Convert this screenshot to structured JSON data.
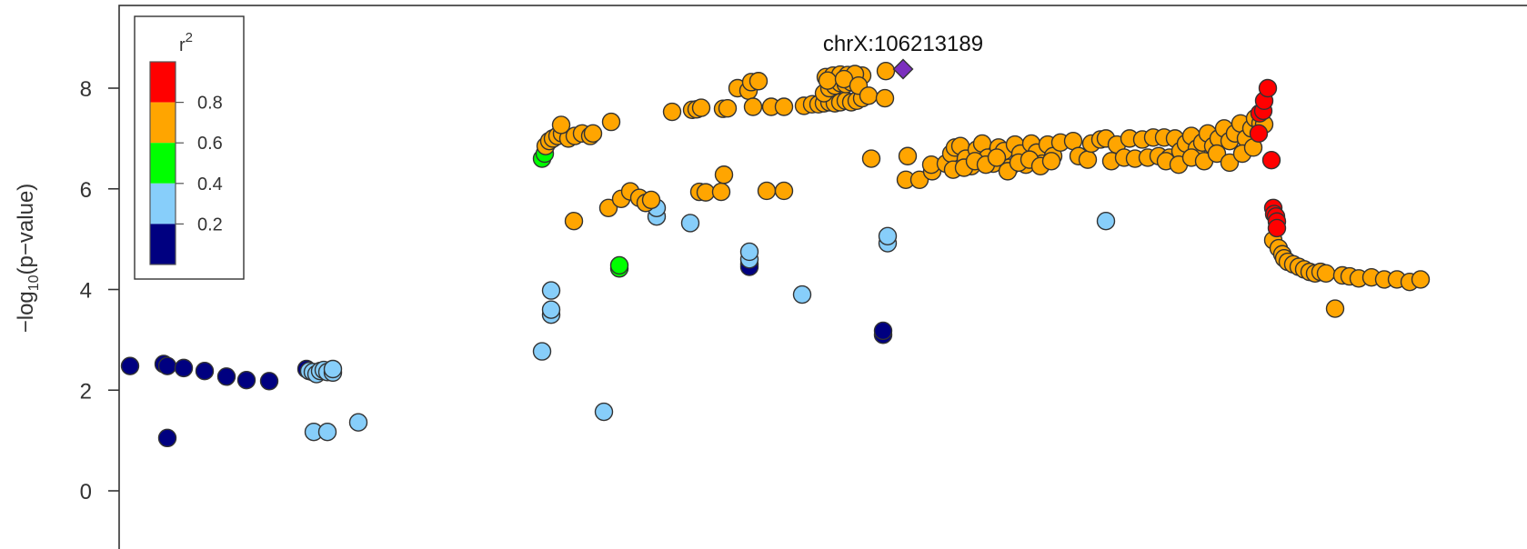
{
  "chart_data": {
    "type": "scatter",
    "title": "",
    "xlabel": "",
    "ylabel": {
      "prefix": "−log",
      "subscript": "10",
      "suffix": "(p−value)"
    },
    "xlim": [
      0,
      1568
    ],
    "ylim": [
      -0.4,
      9.6
    ],
    "yticks": [
      0,
      2,
      4,
      6,
      8
    ],
    "x_axis_note": "x axis has no tick labels visible; x values are relative positions along the region",
    "grid": false,
    "legend": {
      "title": "r",
      "title_superscript": "2",
      "placement": "top-left",
      "bins": [
        {
          "label": "",
          "color": "#FF0000",
          "range": [
            0.8,
            1.0
          ]
        },
        {
          "label": "0.8",
          "color": "#FFA500",
          "range": [
            0.6,
            0.8
          ]
        },
        {
          "label": "0.6",
          "color": "#00FF00",
          "range": [
            0.4,
            0.6
          ]
        },
        {
          "label": "0.4",
          "color": "#87CEFA",
          "range": [
            0.2,
            0.4
          ]
        },
        {
          "label": "0.2",
          "color": "#000080",
          "range": [
            0.0,
            0.2
          ]
        }
      ],
      "tick_labels": [
        "0.8",
        "0.6",
        "0.4",
        "0.2"
      ]
    },
    "lead_snp": {
      "label": "chrX:106213189",
      "x": 993,
      "y": 8.38,
      "color": "#7B2FBE",
      "marker": "diamond"
    },
    "colors": {
      "red": "#FF0000",
      "orange": "#FFA500",
      "green": "#00FF00",
      "lightblue": "#87CEFA",
      "navy": "#000080"
    },
    "series": [
      {
        "name": "",
        "r2_bin": "0.0-0.2",
        "color": "#000080",
        "points": [
          [
            143,
            2.48
          ],
          [
            180,
            2.52
          ],
          [
            184,
            2.48
          ],
          [
            202,
            2.44
          ],
          [
            225,
            2.38
          ],
          [
            249,
            2.27
          ],
          [
            271,
            2.2
          ],
          [
            296,
            2.18
          ],
          [
            184,
            1.05
          ],
          [
            337,
            2.42
          ],
          [
            824,
            4.5
          ],
          [
            824,
            4.45
          ],
          [
            971,
            3.1
          ],
          [
            971,
            3.18
          ]
        ]
      },
      {
        "name": "",
        "r2_bin": "0.2-0.4",
        "color": "#87CEFA",
        "points": [
          [
            340,
            2.38
          ],
          [
            344,
            2.36
          ],
          [
            348,
            2.32
          ],
          [
            352,
            2.38
          ],
          [
            356,
            2.4
          ],
          [
            360,
            2.36
          ],
          [
            366,
            2.35
          ],
          [
            366,
            2.42
          ],
          [
            345,
            1.17
          ],
          [
            360,
            1.17
          ],
          [
            394,
            1.36
          ],
          [
            596,
            2.77
          ],
          [
            606,
            3.5
          ],
          [
            606,
            3.6
          ],
          [
            606,
            3.98
          ],
          [
            664,
            1.57
          ],
          [
            722,
            5.45
          ],
          [
            722,
            5.62
          ],
          [
            759,
            5.32
          ],
          [
            824,
            4.6
          ],
          [
            824,
            4.75
          ],
          [
            882,
            3.9
          ],
          [
            976,
            4.92
          ],
          [
            976,
            5.06
          ],
          [
            1216,
            5.36
          ]
        ]
      },
      {
        "name": "",
        "r2_bin": "0.4-0.6",
        "color": "#00FF00",
        "points": [
          [
            596,
            6.6
          ],
          [
            599,
            6.7
          ],
          [
            681,
            4.42
          ],
          [
            681,
            4.48
          ]
        ]
      },
      {
        "name": "",
        "r2_bin": "0.6-0.8",
        "color": "#FFA500",
        "points": [
          [
            600,
            6.85
          ],
          [
            604,
            6.95
          ],
          [
            608,
            7.0
          ],
          [
            613,
            7.05
          ],
          [
            618,
            7.1
          ],
          [
            625,
            7.0
          ],
          [
            632,
            7.05
          ],
          [
            640,
            7.1
          ],
          [
            649,
            7.05
          ],
          [
            652,
            7.1
          ],
          [
            617,
            7.27
          ],
          [
            672,
            7.33
          ],
          [
            631,
            5.36
          ],
          [
            669,
            5.62
          ],
          [
            683,
            5.8
          ],
          [
            693,
            5.95
          ],
          [
            703,
            5.82
          ],
          [
            710,
            5.72
          ],
          [
            716,
            5.78
          ],
          [
            739,
            7.53
          ],
          [
            761,
            7.57
          ],
          [
            766,
            7.58
          ],
          [
            771,
            7.61
          ],
          [
            795,
            7.59
          ],
          [
            800,
            7.6
          ],
          [
            811,
            8.0
          ],
          [
            823,
            7.95
          ],
          [
            826,
            8.12
          ],
          [
            834,
            8.14
          ],
          [
            828,
            7.63
          ],
          [
            848,
            7.63
          ],
          [
            862,
            7.63
          ],
          [
            769,
            5.94
          ],
          [
            776,
            5.93
          ],
          [
            793,
            5.94
          ],
          [
            796,
            6.28
          ],
          [
            843,
            5.96
          ],
          [
            862,
            5.96
          ],
          [
            884,
            7.65
          ],
          [
            893,
            7.68
          ],
          [
            900,
            7.68
          ],
          [
            906,
            7.7
          ],
          [
            912,
            7.72
          ],
          [
            918,
            7.7
          ],
          [
            924,
            7.72
          ],
          [
            930,
            7.75
          ],
          [
            936,
            7.72
          ],
          [
            942,
            7.75
          ],
          [
            948,
            7.8
          ],
          [
            906,
            7.9
          ],
          [
            912,
            8.0
          ],
          [
            918,
            8.05
          ],
          [
            924,
            8.1
          ],
          [
            930,
            8.08
          ],
          [
            936,
            8.12
          ],
          [
            942,
            8.2
          ],
          [
            948,
            8.25
          ],
          [
            908,
            8.22
          ],
          [
            916,
            8.25
          ],
          [
            924,
            8.27
          ],
          [
            932,
            8.26
          ],
          [
            940,
            8.28
          ],
          [
            910,
            8.15
          ],
          [
            928,
            8.18
          ],
          [
            944,
            8.05
          ],
          [
            955,
            7.85
          ],
          [
            973,
            7.8
          ],
          [
            974,
            8.34
          ],
          [
            958,
            6.6
          ],
          [
            998,
            6.65
          ],
          [
            996,
            6.18
          ],
          [
            1011,
            6.18
          ],
          [
            1025,
            6.35
          ],
          [
            1024,
            6.48
          ],
          [
            1040,
            6.5
          ],
          [
            1046,
            6.7
          ],
          [
            1050,
            6.82
          ],
          [
            1056,
            6.85
          ],
          [
            1062,
            6.6
          ],
          [
            1068,
            6.45
          ],
          [
            1074,
            6.78
          ],
          [
            1080,
            6.9
          ],
          [
            1086,
            6.62
          ],
          [
            1092,
            6.5
          ],
          [
            1098,
            6.82
          ],
          [
            1104,
            6.75
          ],
          [
            1110,
            6.42
          ],
          [
            1116,
            6.88
          ],
          [
            1122,
            6.7
          ],
          [
            1128,
            6.48
          ],
          [
            1134,
            6.9
          ],
          [
            1140,
            6.72
          ],
          [
            1146,
            6.5
          ],
          [
            1152,
            6.88
          ],
          [
            1158,
            6.65
          ],
          [
            1048,
            6.38
          ],
          [
            1060,
            6.42
          ],
          [
            1072,
            6.55
          ],
          [
            1084,
            6.48
          ],
          [
            1096,
            6.62
          ],
          [
            1108,
            6.35
          ],
          [
            1120,
            6.52
          ],
          [
            1132,
            6.58
          ],
          [
            1144,
            6.45
          ],
          [
            1156,
            6.55
          ],
          [
            1166,
            6.92
          ],
          [
            1180,
            6.95
          ],
          [
            1186,
            6.65
          ],
          [
            1196,
            6.58
          ],
          [
            1200,
            6.9
          ],
          [
            1210,
            6.98
          ],
          [
            1216,
            7.0
          ],
          [
            1222,
            6.55
          ],
          [
            1228,
            6.88
          ],
          [
            1236,
            6.62
          ],
          [
            1242,
            7.0
          ],
          [
            1248,
            6.6
          ],
          [
            1256,
            6.98
          ],
          [
            1262,
            6.62
          ],
          [
            1268,
            7.02
          ],
          [
            1274,
            6.65
          ],
          [
            1280,
            7.02
          ],
          [
            1286,
            6.62
          ],
          [
            1292,
            7.0
          ],
          [
            1298,
            6.75
          ],
          [
            1304,
            6.9
          ],
          [
            1310,
            7.05
          ],
          [
            1316,
            6.8
          ],
          [
            1322,
            6.92
          ],
          [
            1328,
            7.1
          ],
          [
            1334,
            6.85
          ],
          [
            1340,
            7.0
          ],
          [
            1346,
            7.2
          ],
          [
            1352,
            6.95
          ],
          [
            1358,
            7.1
          ],
          [
            1364,
            7.3
          ],
          [
            1370,
            7.0
          ],
          [
            1376,
            7.2
          ],
          [
            1380,
            7.4
          ],
          [
            1386,
            7.3
          ],
          [
            1282,
            6.55
          ],
          [
            1296,
            6.48
          ],
          [
            1310,
            6.62
          ],
          [
            1324,
            6.55
          ],
          [
            1338,
            6.7
          ],
          [
            1352,
            6.52
          ],
          [
            1366,
            6.7
          ],
          [
            1378,
            6.82
          ],
          [
            1390,
            7.28
          ],
          [
            1400,
            4.98
          ],
          [
            1406,
            4.82
          ],
          [
            1410,
            4.7
          ],
          [
            1412,
            4.62
          ],
          [
            1416,
            4.55
          ],
          [
            1422,
            4.5
          ],
          [
            1428,
            4.45
          ],
          [
            1434,
            4.4
          ],
          [
            1440,
            4.35
          ],
          [
            1446,
            4.32
          ],
          [
            1452,
            4.35
          ],
          [
            1458,
            4.32
          ],
          [
            1468,
            3.62
          ],
          [
            1476,
            4.28
          ],
          [
            1484,
            4.26
          ],
          [
            1494,
            4.22
          ],
          [
            1508,
            4.24
          ],
          [
            1522,
            4.2
          ],
          [
            1536,
            4.2
          ],
          [
            1550,
            4.15
          ],
          [
            1562,
            4.2
          ]
        ]
      },
      {
        "name": "",
        "r2_bin": "0.8-1.0",
        "color": "#FF0000",
        "points": [
          [
            1384,
            7.1
          ],
          [
            1385,
            7.5
          ],
          [
            1389,
            7.55
          ],
          [
            1390,
            7.75
          ],
          [
            1394,
            8.0
          ],
          [
            1398,
            6.57
          ],
          [
            1400,
            5.62
          ],
          [
            1401,
            5.5
          ],
          [
            1403,
            5.45
          ],
          [
            1404,
            5.35
          ],
          [
            1404,
            5.22
          ]
        ]
      }
    ]
  }
}
